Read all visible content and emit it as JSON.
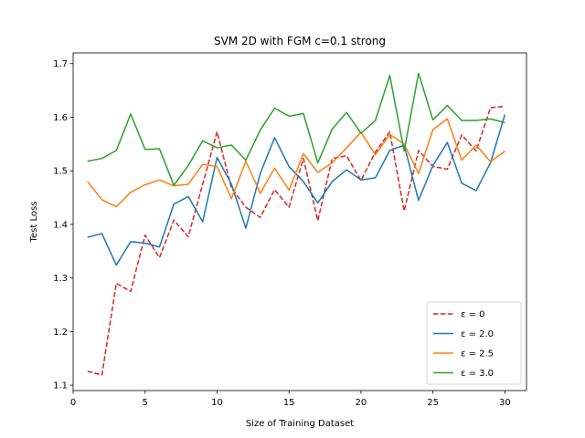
{
  "chart_data": {
    "type": "line",
    "title": "SVM 2D with FGM c=0.1 strong",
    "xlabel": "Size of Training Dataset",
    "ylabel": "Test Loss",
    "xlim": [
      0,
      31.5
    ],
    "ylim": [
      1.09,
      1.72
    ],
    "xticks": [
      0,
      5,
      10,
      15,
      20,
      25,
      30
    ],
    "yticks": [
      1.1,
      1.2,
      1.3,
      1.4,
      1.5,
      1.6,
      1.7
    ],
    "grid": false,
    "legend_position": "lower-right",
    "x": [
      1,
      2,
      3,
      4,
      5,
      6,
      7,
      8,
      9,
      10,
      11,
      12,
      13,
      14,
      15,
      16,
      17,
      18,
      19,
      20,
      21,
      22,
      23,
      24,
      25,
      26,
      27,
      28,
      29,
      30
    ],
    "series": [
      {
        "name": "ε = 0",
        "color": "#d62728",
        "dash": "dashed",
        "values": [
          1.126,
          1.119,
          1.29,
          1.275,
          1.38,
          1.338,
          1.408,
          1.377,
          1.475,
          1.573,
          1.468,
          1.432,
          1.413,
          1.465,
          1.432,
          1.523,
          1.407,
          1.523,
          1.528,
          1.482,
          1.535,
          1.573,
          1.425,
          1.538,
          1.508,
          1.503,
          1.567,
          1.537,
          1.618,
          1.62
        ]
      },
      {
        "name": "ε = 2.0",
        "color": "#1f77b4",
        "dash": "solid",
        "values": [
          1.376,
          1.383,
          1.324,
          1.368,
          1.365,
          1.358,
          1.438,
          1.452,
          1.405,
          1.525,
          1.475,
          1.393,
          1.495,
          1.562,
          1.508,
          1.48,
          1.44,
          1.48,
          1.502,
          1.483,
          1.487,
          1.538,
          1.548,
          1.445,
          1.51,
          1.553,
          1.477,
          1.463,
          1.515,
          1.605
        ]
      },
      {
        "name": "ε = 2.5",
        "color": "#ff7f0e",
        "dash": "solid",
        "values": [
          1.48,
          1.446,
          1.433,
          1.46,
          1.474,
          1.483,
          1.472,
          1.475,
          1.512,
          1.508,
          1.448,
          1.518,
          1.458,
          1.505,
          1.464,
          1.532,
          1.497,
          1.515,
          1.543,
          1.572,
          1.53,
          1.568,
          1.55,
          1.495,
          1.577,
          1.597,
          1.52,
          1.548,
          1.517,
          1.537
        ]
      },
      {
        "name": "ε = 3.0",
        "color": "#2ca02c",
        "dash": "solid",
        "values": [
          1.518,
          1.523,
          1.538,
          1.606,
          1.54,
          1.541,
          1.473,
          1.51,
          1.556,
          1.543,
          1.548,
          1.52,
          1.576,
          1.617,
          1.602,
          1.607,
          1.515,
          1.578,
          1.609,
          1.57,
          1.594,
          1.678,
          1.537,
          1.682,
          1.595,
          1.622,
          1.594,
          1.594,
          1.597,
          1.59
        ]
      }
    ]
  }
}
